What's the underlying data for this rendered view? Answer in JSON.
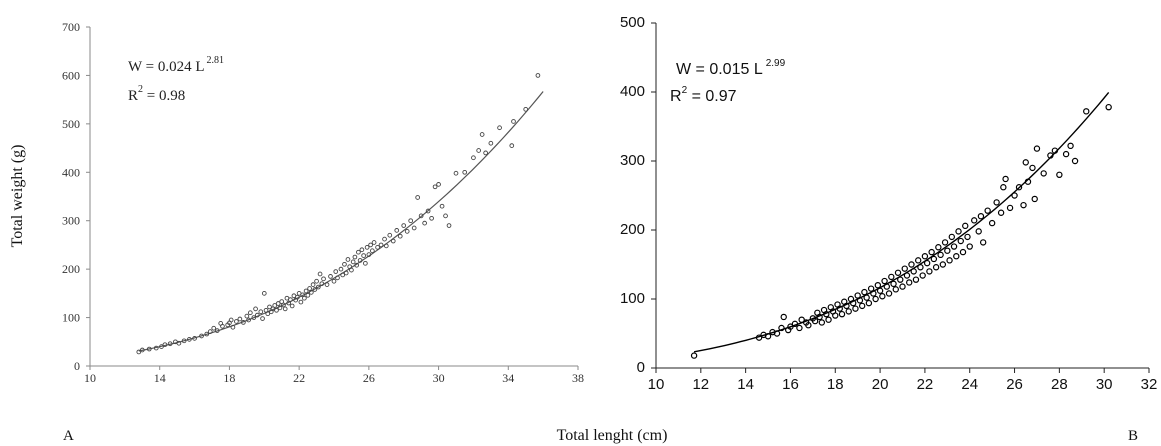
{
  "figure": {
    "shared_ylabel": "Total weight (g)",
    "shared_xlabel": "Total lenght (cm)"
  },
  "chart_data": [
    {
      "panel_label": "A",
      "type": "scatter",
      "title": "",
      "equation": {
        "main": "W = 0.024 L",
        "exponent": "2.81"
      },
      "r2": {
        "prefix": "R",
        "sup": "2",
        "value": " = 0.98"
      },
      "xlim": [
        10,
        38
      ],
      "ylim": [
        0,
        700
      ],
      "xticks": [
        10,
        14,
        18,
        22,
        26,
        30,
        34,
        38
      ],
      "yticks": [
        0,
        100,
        200,
        300,
        400,
        500,
        600,
        700
      ],
      "grid": false,
      "fit": {
        "a": 0.024,
        "b": 2.81,
        "x_range": [
          12.8,
          36.0
        ]
      },
      "points_note": "",
      "points": [
        [
          12.8,
          29
        ],
        [
          13.0,
          33
        ],
        [
          13.4,
          35
        ],
        [
          13.8,
          37
        ],
        [
          14.1,
          40
        ],
        [
          14.3,
          44
        ],
        [
          14.6,
          46
        ],
        [
          14.9,
          50
        ],
        [
          15.1,
          47
        ],
        [
          15.4,
          52
        ],
        [
          15.7,
          55
        ],
        [
          16.0,
          57
        ],
        [
          16.4,
          62
        ],
        [
          16.7,
          66
        ],
        [
          16.9,
          71
        ],
        [
          17.1,
          78
        ],
        [
          17.3,
          73
        ],
        [
          17.5,
          88
        ],
        [
          17.6,
          82
        ],
        [
          17.9,
          85
        ],
        [
          18.0,
          89
        ],
        [
          18.1,
          95
        ],
        [
          18.2,
          80
        ],
        [
          18.4,
          92
        ],
        [
          18.6,
          97
        ],
        [
          18.8,
          90
        ],
        [
          19.0,
          103
        ],
        [
          19.1,
          95
        ],
        [
          19.2,
          110
        ],
        [
          19.4,
          100
        ],
        [
          19.5,
          118
        ],
        [
          19.6,
          105
        ],
        [
          19.8,
          112
        ],
        [
          19.9,
          98
        ],
        [
          20.0,
          150
        ],
        [
          20.1,
          115
        ],
        [
          20.2,
          108
        ],
        [
          20.3,
          122
        ],
        [
          20.4,
          112
        ],
        [
          20.5,
          118
        ],
        [
          20.6,
          125
        ],
        [
          20.7,
          115
        ],
        [
          20.8,
          129
        ],
        [
          20.9,
          120
        ],
        [
          21.0,
          133
        ],
        [
          21.1,
          126
        ],
        [
          21.2,
          118
        ],
        [
          21.3,
          140
        ],
        [
          21.4,
          130
        ],
        [
          21.5,
          137
        ],
        [
          21.6,
          124
        ],
        [
          21.7,
          145
        ],
        [
          21.8,
          136
        ],
        [
          21.9,
          142
        ],
        [
          22.0,
          150
        ],
        [
          22.1,
          132
        ],
        [
          22.2,
          147
        ],
        [
          22.3,
          140
        ],
        [
          22.4,
          155
        ],
        [
          22.5,
          146
        ],
        [
          22.6,
          160
        ],
        [
          22.7,
          152
        ],
        [
          22.8,
          168
        ],
        [
          22.9,
          158
        ],
        [
          23.0,
          175
        ],
        [
          23.1,
          163
        ],
        [
          23.2,
          190
        ],
        [
          23.3,
          170
        ],
        [
          23.4,
          180
        ],
        [
          23.6,
          168
        ],
        [
          23.8,
          185
        ],
        [
          24.0,
          175
        ],
        [
          24.1,
          195
        ],
        [
          24.2,
          182
        ],
        [
          24.4,
          200
        ],
        [
          24.5,
          188
        ],
        [
          24.6,
          210
        ],
        [
          24.7,
          192
        ],
        [
          24.8,
          220
        ],
        [
          24.9,
          205
        ],
        [
          25.0,
          198
        ],
        [
          25.1,
          215
        ],
        [
          25.2,
          225
        ],
        [
          25.3,
          208
        ],
        [
          25.4,
          235
        ],
        [
          25.5,
          218
        ],
        [
          25.6,
          240
        ],
        [
          25.7,
          228
        ],
        [
          25.8,
          212
        ],
        [
          25.9,
          245
        ],
        [
          26.0,
          230
        ],
        [
          26.1,
          250
        ],
        [
          26.2,
          238
        ],
        [
          26.3,
          255
        ],
        [
          26.5,
          245
        ],
        [
          26.7,
          250
        ],
        [
          26.9,
          262
        ],
        [
          27.0,
          248
        ],
        [
          27.2,
          270
        ],
        [
          27.4,
          258
        ],
        [
          27.6,
          280
        ],
        [
          27.8,
          268
        ],
        [
          28.0,
          290
        ],
        [
          28.2,
          278
        ],
        [
          28.4,
          300
        ],
        [
          28.6,
          285
        ],
        [
          28.8,
          348
        ],
        [
          29.0,
          310
        ],
        [
          29.2,
          295
        ],
        [
          29.4,
          320
        ],
        [
          29.6,
          305
        ],
        [
          29.8,
          370
        ],
        [
          30.0,
          375
        ],
        [
          30.2,
          330
        ],
        [
          30.4,
          310
        ],
        [
          30.6,
          290
        ],
        [
          31.0,
          398
        ],
        [
          31.5,
          400
        ],
        [
          32.0,
          430
        ],
        [
          32.3,
          445
        ],
        [
          32.5,
          478
        ],
        [
          32.7,
          440
        ],
        [
          33.0,
          460
        ],
        [
          33.5,
          492
        ],
        [
          34.2,
          455
        ],
        [
          34.3,
          505
        ],
        [
          35.0,
          530
        ],
        [
          35.7,
          600
        ]
      ]
    },
    {
      "panel_label": "B",
      "type": "scatter",
      "title": "",
      "equation": {
        "main": "W = 0.015 L",
        "exponent": "2.99"
      },
      "r2": {
        "prefix": "R",
        "sup": "2",
        "value": " = 0.97"
      },
      "xlim": [
        10,
        32
      ],
      "ylim": [
        0,
        500
      ],
      "xticks": [
        10,
        12,
        14,
        16,
        18,
        20,
        22,
        24,
        26,
        28,
        30,
        32
      ],
      "yticks": [
        0,
        100,
        200,
        300,
        400,
        500
      ],
      "grid": false,
      "fit": {
        "a": 0.015,
        "b": 2.99,
        "x_range": [
          11.7,
          30.2
        ]
      },
      "points": [
        [
          11.7,
          18
        ],
        [
          14.6,
          44
        ],
        [
          14.8,
          48
        ],
        [
          15.0,
          46
        ],
        [
          15.2,
          52
        ],
        [
          15.4,
          50
        ],
        [
          15.6,
          58
        ],
        [
          15.7,
          74
        ],
        [
          15.9,
          55
        ],
        [
          16.0,
          60
        ],
        [
          16.2,
          64
        ],
        [
          16.4,
          58
        ],
        [
          16.5,
          70
        ],
        [
          16.7,
          66
        ],
        [
          16.8,
          62
        ],
        [
          17.0,
          72
        ],
        [
          17.1,
          68
        ],
        [
          17.2,
          80
        ],
        [
          17.3,
          74
        ],
        [
          17.4,
          66
        ],
        [
          17.5,
          84
        ],
        [
          17.6,
          78
        ],
        [
          17.7,
          70
        ],
        [
          17.8,
          88
        ],
        [
          17.9,
          82
        ],
        [
          18.0,
          76
        ],
        [
          18.1,
          92
        ],
        [
          18.2,
          86
        ],
        [
          18.3,
          78
        ],
        [
          18.4,
          96
        ],
        [
          18.5,
          90
        ],
        [
          18.6,
          82
        ],
        [
          18.7,
          100
        ],
        [
          18.8,
          94
        ],
        [
          18.9,
          86
        ],
        [
          19.0,
          105
        ],
        [
          19.1,
          98
        ],
        [
          19.2,
          90
        ],
        [
          19.3,
          110
        ],
        [
          19.4,
          102
        ],
        [
          19.5,
          94
        ],
        [
          19.6,
          115
        ],
        [
          19.7,
          108
        ],
        [
          19.8,
          100
        ],
        [
          19.9,
          120
        ],
        [
          20.0,
          112
        ],
        [
          20.1,
          104
        ],
        [
          20.2,
          126
        ],
        [
          20.3,
          118
        ],
        [
          20.4,
          108
        ],
        [
          20.5,
          132
        ],
        [
          20.6,
          122
        ],
        [
          20.7,
          114
        ],
        [
          20.8,
          138
        ],
        [
          20.9,
          128
        ],
        [
          21.0,
          118
        ],
        [
          21.1,
          144
        ],
        [
          21.2,
          134
        ],
        [
          21.3,
          124
        ],
        [
          21.4,
          150
        ],
        [
          21.5,
          140
        ],
        [
          21.6,
          128
        ],
        [
          21.7,
          156
        ],
        [
          21.8,
          146
        ],
        [
          21.9,
          134
        ],
        [
          22.0,
          162
        ],
        [
          22.1,
          152
        ],
        [
          22.2,
          140
        ],
        [
          22.3,
          168
        ],
        [
          22.4,
          158
        ],
        [
          22.5,
          146
        ],
        [
          22.6,
          175
        ],
        [
          22.7,
          164
        ],
        [
          22.8,
          150
        ],
        [
          22.9,
          182
        ],
        [
          23.0,
          170
        ],
        [
          23.1,
          156
        ],
        [
          23.2,
          190
        ],
        [
          23.3,
          176
        ],
        [
          23.4,
          162
        ],
        [
          23.5,
          198
        ],
        [
          23.6,
          184
        ],
        [
          23.7,
          168
        ],
        [
          23.8,
          206
        ],
        [
          23.9,
          190
        ],
        [
          24.0,
          176
        ],
        [
          24.2,
          214
        ],
        [
          24.4,
          198
        ],
        [
          24.5,
          220
        ],
        [
          24.6,
          182
        ],
        [
          24.8,
          228
        ],
        [
          25.0,
          210
        ],
        [
          25.2,
          240
        ],
        [
          25.4,
          225
        ],
        [
          25.5,
          262
        ],
        [
          25.6,
          274
        ],
        [
          25.8,
          232
        ],
        [
          26.0,
          250
        ],
        [
          26.2,
          262
        ],
        [
          26.4,
          236
        ],
        [
          26.5,
          298
        ],
        [
          26.6,
          270
        ],
        [
          26.8,
          290
        ],
        [
          26.9,
          245
        ],
        [
          27.0,
          318
        ],
        [
          27.3,
          282
        ],
        [
          27.6,
          308
        ],
        [
          27.8,
          315
        ],
        [
          28.0,
          280
        ],
        [
          28.3,
          310
        ],
        [
          28.5,
          322
        ],
        [
          28.7,
          300
        ],
        [
          29.2,
          372
        ],
        [
          30.2,
          378
        ]
      ]
    }
  ]
}
